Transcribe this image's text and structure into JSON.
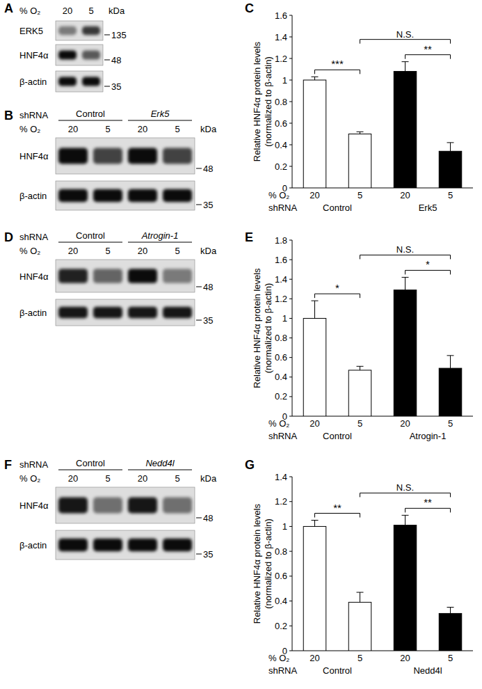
{
  "blots": [
    {
      "panel": "A",
      "lane_title": "% O₂",
      "lanes": [
        "20",
        "5"
      ],
      "marker_unit": "kDa",
      "rows": [
        {
          "label": "ERK5",
          "intensity": [
            0.45,
            0.75
          ]
        },
        {
          "label": "HNF4α",
          "intensity": [
            0.95,
            0.6
          ]
        },
        {
          "label": "β-actin",
          "intensity": [
            0.95,
            0.95
          ]
        }
      ],
      "markers": [
        {
          "value": 135,
          "row": 0
        },
        {
          "value": 48,
          "row": 1
        },
        {
          "value": 35,
          "row": 2
        }
      ]
    },
    {
      "panel": "B",
      "group_title": "shRNA",
      "groups": [
        "Control",
        "Erk5"
      ],
      "lane_title": "% O₂",
      "lanes": [
        "20",
        "5",
        "20",
        "5"
      ],
      "marker_unit": "kDa",
      "rows": [
        {
          "label": "HNF4α",
          "intensity": [
            0.95,
            0.7,
            0.95,
            0.7
          ]
        },
        {
          "label": "β-actin",
          "intensity": [
            0.95,
            0.95,
            0.95,
            0.95
          ]
        }
      ],
      "markers": [
        {
          "value": 48,
          "row": 0
        },
        {
          "value": 35,
          "row": 1
        }
      ]
    },
    {
      "panel": "D",
      "group_title": "shRNA",
      "groups": [
        "Control",
        "Atrogin-1"
      ],
      "lane_title": "% O₂",
      "lanes": [
        "20",
        "5",
        "20",
        "5"
      ],
      "marker_unit": "kDa",
      "rows": [
        {
          "label": "HNF4α",
          "intensity": [
            0.85,
            0.55,
            0.95,
            0.45
          ]
        },
        {
          "label": "β-actin",
          "intensity": [
            0.9,
            0.9,
            0.9,
            0.9
          ]
        }
      ],
      "markers": [
        {
          "value": 48,
          "row": 0
        },
        {
          "value": 35,
          "row": 1
        }
      ]
    },
    {
      "panel": "F",
      "group_title": "shRNA",
      "groups": [
        "Control",
        "Nedd4l"
      ],
      "lane_title": "% O₂",
      "lanes": [
        "20",
        "5",
        "20",
        "5"
      ],
      "marker_unit": "kDa",
      "rows": [
        {
          "label": "HNF4α",
          "intensity": [
            0.9,
            0.5,
            0.9,
            0.5
          ]
        },
        {
          "label": "β-actin",
          "intensity": [
            0.95,
            0.95,
            0.95,
            0.95
          ]
        }
      ],
      "markers": [
        {
          "value": 48,
          "row": 0
        },
        {
          "value": 35,
          "row": 1
        }
      ]
    }
  ],
  "chart_data": [
    {
      "panel": "C",
      "type": "bar",
      "ylabel": [
        "Relative HNF4α protein levels",
        "(normalized to β-actin)"
      ],
      "categories": [
        "20",
        "5",
        "20",
        "5"
      ],
      "category_title": "% O₂",
      "group_title": "shRNA",
      "groups": [
        "Control",
        "Erk5"
      ],
      "values": [
        1.0,
        0.5,
        1.08,
        0.34
      ],
      "errors": [
        0.03,
        0.02,
        0.09,
        0.08
      ],
      "colors": [
        "#ffffff",
        "#ffffff",
        "#000000",
        "#000000"
      ],
      "ylim": [
        0,
        1.6
      ],
      "yticks": [
        0,
        0.2,
        0.4,
        0.6,
        0.8,
        1,
        1.2,
        1.4,
        1.6
      ],
      "significance": [
        {
          "from": 0,
          "to": 1,
          "label": "***"
        },
        {
          "from": 2,
          "to": 3,
          "label": "**"
        },
        {
          "from": 1,
          "to": 3,
          "label": "N.S."
        }
      ]
    },
    {
      "panel": "E",
      "type": "bar",
      "ylabel": [
        "Relative HNF4α protein levels",
        "(normalized to β-actin)"
      ],
      "categories": [
        "20",
        "5",
        "20",
        "5"
      ],
      "category_title": "% O₂",
      "group_title": "shRNA",
      "groups": [
        "Control",
        "Atrogin-1"
      ],
      "values": [
        1.0,
        0.47,
        1.29,
        0.49
      ],
      "errors": [
        0.18,
        0.04,
        0.13,
        0.13
      ],
      "colors": [
        "#ffffff",
        "#ffffff",
        "#000000",
        "#000000"
      ],
      "ylim": [
        0,
        1.8
      ],
      "yticks": [
        0,
        0.2,
        0.4,
        0.6,
        0.8,
        1,
        1.2,
        1.4,
        1.6,
        1.8
      ],
      "significance": [
        {
          "from": 0,
          "to": 1,
          "label": "*"
        },
        {
          "from": 2,
          "to": 3,
          "label": "*"
        },
        {
          "from": 1,
          "to": 3,
          "label": "N.S."
        }
      ]
    },
    {
      "panel": "G",
      "type": "bar",
      "ylabel": [
        "Relative HNF4α protein levels",
        "(normalized to β-actin)"
      ],
      "categories": [
        "20",
        "5",
        "20",
        "5"
      ],
      "category_title": "% O₂",
      "group_title": "shRNA",
      "groups": [
        "Control",
        "Nedd4l"
      ],
      "values": [
        1.0,
        0.39,
        1.01,
        0.3
      ],
      "errors": [
        0.05,
        0.08,
        0.08,
        0.05
      ],
      "colors": [
        "#ffffff",
        "#ffffff",
        "#000000",
        "#000000"
      ],
      "ylim": [
        0,
        1.4
      ],
      "yticks": [
        0,
        0.2,
        0.4,
        0.6,
        0.8,
        1,
        1.2,
        1.4
      ],
      "significance": [
        {
          "from": 0,
          "to": 1,
          "label": "**"
        },
        {
          "from": 2,
          "to": 3,
          "label": "**"
        },
        {
          "from": 1,
          "to": 3,
          "label": "N.S."
        }
      ]
    }
  ]
}
